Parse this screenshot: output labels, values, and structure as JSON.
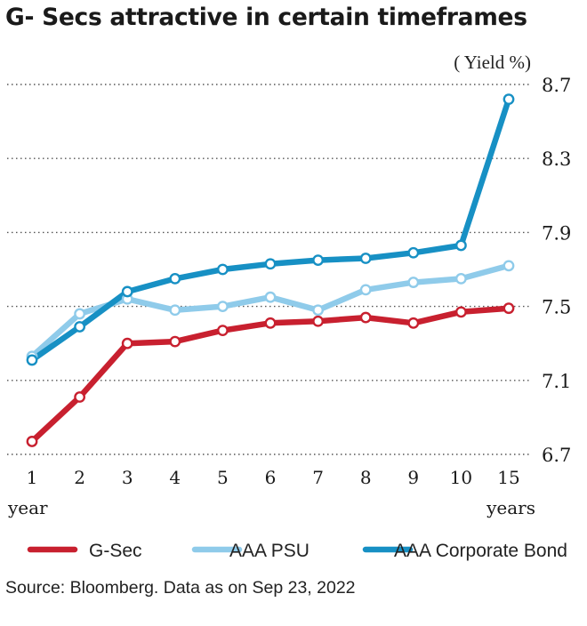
{
  "chart_data": {
    "type": "line",
    "title": "G- Secs attractive in certain timeframes",
    "unit_label": "( Yield %)",
    "x": [
      "1",
      "2",
      "3",
      "4",
      "5",
      "6",
      "7",
      "8",
      "9",
      "10",
      "15"
    ],
    "x_first_caption": "year",
    "x_last_caption": "years",
    "yticks": [
      6.7,
      7.1,
      7.5,
      7.9,
      8.3,
      8.7
    ],
    "ytick_labels": [
      "6.7",
      "7.1",
      "7.5",
      "7.9",
      "8.3",
      "8.7"
    ],
    "ylim": [
      6.7,
      8.7
    ],
    "grid": "horizontal-dotted",
    "legend_position": "bottom",
    "series": [
      {
        "name": "G-Sec",
        "color": "#c8202f",
        "values": [
          6.77,
          7.01,
          7.3,
          7.31,
          7.37,
          7.41,
          7.42,
          7.44,
          7.41,
          7.47,
          7.49
        ]
      },
      {
        "name": "AAA PSU",
        "color": "#8fcbea",
        "values": [
          7.23,
          7.46,
          7.54,
          7.48,
          7.5,
          7.55,
          7.48,
          7.59,
          7.63,
          7.65,
          7.72
        ]
      },
      {
        "name": "AAA Corporate Bond",
        "color": "#1790c4",
        "values": [
          7.21,
          7.39,
          7.58,
          7.65,
          7.7,
          7.73,
          7.75,
          7.76,
          7.79,
          7.83,
          8.62
        ]
      }
    ]
  },
  "source": "Source: Bloomberg. Data as on Sep 23, 2022"
}
